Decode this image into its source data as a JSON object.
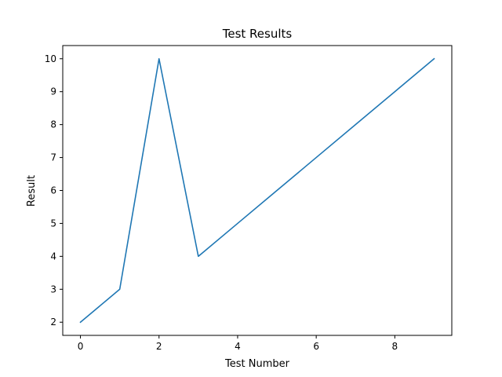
{
  "chart_data": {
    "type": "line",
    "title": "Test Results",
    "xlabel": "Test Number",
    "ylabel": "Result",
    "x": [
      0,
      1,
      2,
      3,
      4,
      5,
      6,
      7,
      8,
      9
    ],
    "series": [
      {
        "values": [
          2,
          3,
          10,
          4,
          5,
          6,
          7,
          8,
          9,
          10
        ],
        "color": "#1f77b4"
      }
    ],
    "xlim": [
      -0.45,
      9.45
    ],
    "ylim": [
      1.6,
      10.4
    ],
    "xticks": [
      0,
      2,
      4,
      6,
      8
    ],
    "yticks": [
      2,
      3,
      4,
      5,
      6,
      7,
      8,
      9,
      10
    ],
    "grid": false,
    "legend": "none"
  }
}
